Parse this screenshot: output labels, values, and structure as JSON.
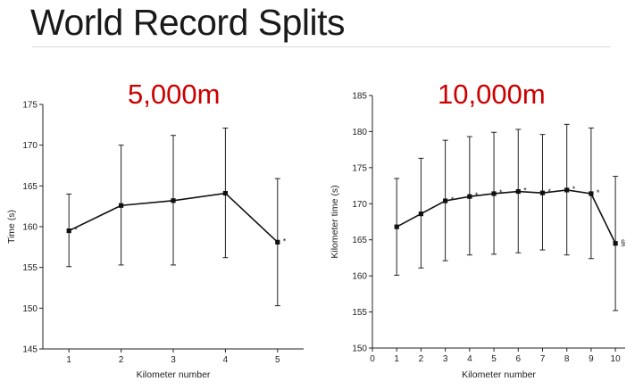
{
  "slide": {
    "title": "World Record Splits"
  },
  "chart_data": [
    {
      "type": "line",
      "title": "5,000m",
      "xlabel": "Kilometer number",
      "ylabel": "Time (s)",
      "x": [
        1,
        2,
        3,
        4,
        5
      ],
      "xticks": [
        1,
        2,
        3,
        4,
        5
      ],
      "xlim": [
        0.5,
        5.5
      ],
      "ylim": [
        145,
        175
      ],
      "yticks": [
        145,
        150,
        155,
        160,
        165,
        170,
        175
      ],
      "series": [
        {
          "values": [
            159.5,
            162.6,
            163.2,
            164.1,
            158.1
          ],
          "error_upper": [
            164.0,
            170.0,
            171.2,
            172.1,
            165.9
          ],
          "error_lower": [
            155.1,
            155.3,
            155.3,
            156.2,
            150.3
          ],
          "markers": [
            "*",
            "",
            "",
            "",
            "*"
          ]
        }
      ]
    },
    {
      "type": "line",
      "title": "10,000m",
      "xlabel": "Kilometer number",
      "ylabel": "Kilometer time (s)",
      "x": [
        1,
        2,
        3,
        4,
        5,
        6,
        7,
        8,
        9,
        10
      ],
      "xticks": [
        0,
        1,
        2,
        3,
        4,
        5,
        6,
        7,
        8,
        9,
        10
      ],
      "xlim": [
        0,
        10.4
      ],
      "ylim": [
        150,
        185
      ],
      "yticks": [
        150,
        155,
        160,
        165,
        170,
        175,
        180,
        185
      ],
      "series": [
        {
          "values": [
            166.8,
            168.6,
            170.4,
            171.0,
            171.4,
            171.7,
            171.5,
            171.9,
            171.4,
            164.5
          ],
          "error_upper": [
            173.5,
            176.3,
            178.8,
            179.3,
            179.9,
            180.3,
            179.6,
            181.0,
            180.5,
            173.8
          ],
          "error_lower": [
            160.1,
            161.1,
            162.1,
            162.9,
            163.0,
            163.2,
            163.6,
            162.9,
            162.4,
            155.2
          ],
          "markers": [
            "",
            "",
            "*",
            "*",
            "*",
            "*",
            "*",
            "*",
            "*",
            "§"
          ]
        }
      ]
    }
  ]
}
